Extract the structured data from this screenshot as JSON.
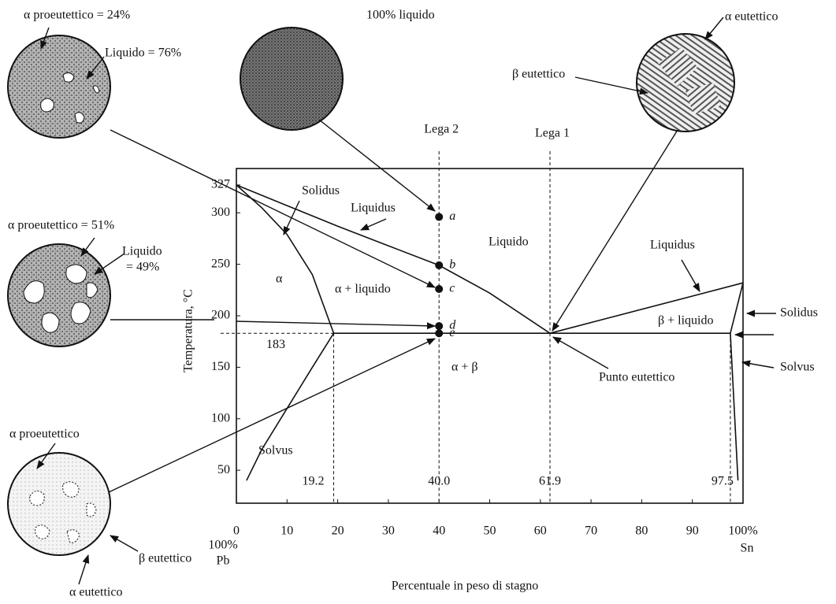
{
  "chart_data": {
    "type": "phase",
    "x_label": "Percentuale in peso di stagno",
    "y_label": "Temperatura, °C",
    "xlim": [
      0,
      100
    ],
    "ylim": [
      18,
      343
    ],
    "xticks": [
      0,
      10,
      20,
      30,
      40,
      50,
      60,
      70,
      80,
      90,
      {
        "value": 100,
        "label": "100%"
      }
    ],
    "yticks": [
      50,
      100,
      150,
      200,
      250,
      300,
      327
    ],
    "color": "#111111",
    "series": [
      {
        "name": "Liquidus",
        "x": [
          0,
          10,
          20,
          30,
          40,
          50,
          61.9
        ],
        "values": [
          327,
          307,
          287,
          268,
          249,
          222,
          183
        ]
      },
      {
        "name": "Solidus",
        "x": [
          0,
          5,
          10,
          15,
          19.2
        ],
        "values": [
          327,
          305,
          279,
          240,
          183
        ]
      },
      {
        "name": "Solvus",
        "x": [
          19.2,
          15,
          10,
          5,
          2
        ],
        "values": [
          183,
          150,
          110,
          70,
          40
        ]
      },
      {
        "name": "Liquidus",
        "x": [
          61.9,
          100
        ],
        "values": [
          183,
          232
        ]
      },
      {
        "name": "Solidus",
        "x": [
          100,
          97.5
        ],
        "values": [
          232,
          183
        ]
      },
      {
        "name": "Solvus",
        "x": [
          97.5,
          99
        ],
        "values": [
          183,
          40
        ]
      },
      {
        "x": [
          19.2,
          97.5
        ],
        "values": [
          183,
          183
        ]
      }
    ],
    "hlines": [
      183
    ],
    "vlines": [
      19.2,
      {
        "value": 40,
        "label": "40.0"
      },
      61.9,
      97.5
    ],
    "alloys": [
      {
        "name": "Lega 2",
        "x": 40
      },
      {
        "name": "Lega 1",
        "x": 61.9
      }
    ],
    "points": {
      "labels": [
        "a",
        "b",
        "c",
        "d",
        "e"
      ],
      "x": [
        40,
        40,
        40,
        40,
        40
      ],
      "values": [
        296,
        249,
        226,
        190,
        183
      ]
    },
    "regions": [
      "α",
      "α + liquido",
      "Liquido",
      "β + liquido",
      "α + β"
    ],
    "axis_notes": [
      "100%",
      "Pb",
      "Sn"
    ],
    "eutectic_label": "Punto eutettico",
    "microstructures": [
      {
        "labels": [
          "α proeutettico = 24%",
          "Liquido = 76%"
        ]
      },
      {
        "labels": [
          "100% liquido"
        ]
      },
      {
        "labels": [
          "α eutettico",
          "β eutettico"
        ]
      },
      {
        "labels": [
          "α proeutettico = 51%",
          "Liquido",
          "= 49%"
        ]
      },
      {
        "labels": [
          "α proeutettico",
          "β eutettico",
          "α eutettico"
        ]
      }
    ]
  }
}
